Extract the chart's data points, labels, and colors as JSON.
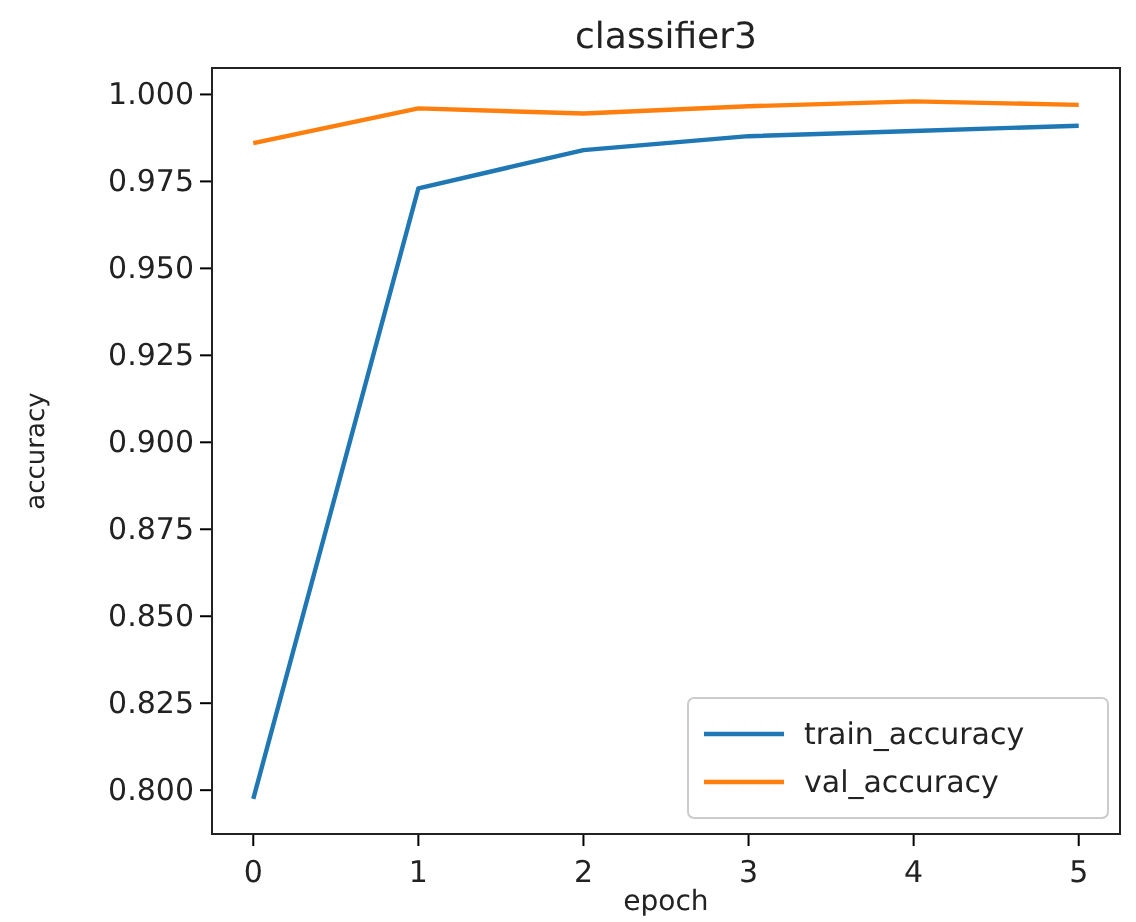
{
  "chart_data": {
    "type": "line",
    "title": "classifier3",
    "xlabel": "epoch",
    "ylabel": "accuracy",
    "x": [
      0,
      1,
      2,
      3,
      4,
      5
    ],
    "series": [
      {
        "name": "train_accuracy",
        "color": "#1f77b4",
        "values": [
          0.7975,
          0.973,
          0.984,
          0.988,
          0.9895,
          0.991
        ]
      },
      {
        "name": "val_accuracy",
        "color": "#ff7f0e",
        "values": [
          0.986,
          0.996,
          0.9945,
          0.9966,
          0.998,
          0.997
        ]
      }
    ],
    "xlim": [
      -0.25,
      5.25
    ],
    "xticks": [
      0,
      1,
      2,
      3,
      4,
      5
    ],
    "ylim": [
      0.7874,
      1.0076
    ],
    "yticks": [
      {
        "value": 0.8,
        "label": "0.800"
      },
      {
        "value": 0.825,
        "label": "0.825"
      },
      {
        "value": 0.85,
        "label": "0.850"
      },
      {
        "value": 0.875,
        "label": "0.875"
      },
      {
        "value": 0.9,
        "label": "0.900"
      },
      {
        "value": 0.925,
        "label": "0.925"
      },
      {
        "value": 0.95,
        "label": "0.950"
      },
      {
        "value": 0.975,
        "label": "0.975"
      },
      {
        "value": 1,
        "label": "1.000"
      }
    ],
    "grid": false,
    "legend": "bottom right",
    "marker": "none",
    "line_style": "solid"
  }
}
